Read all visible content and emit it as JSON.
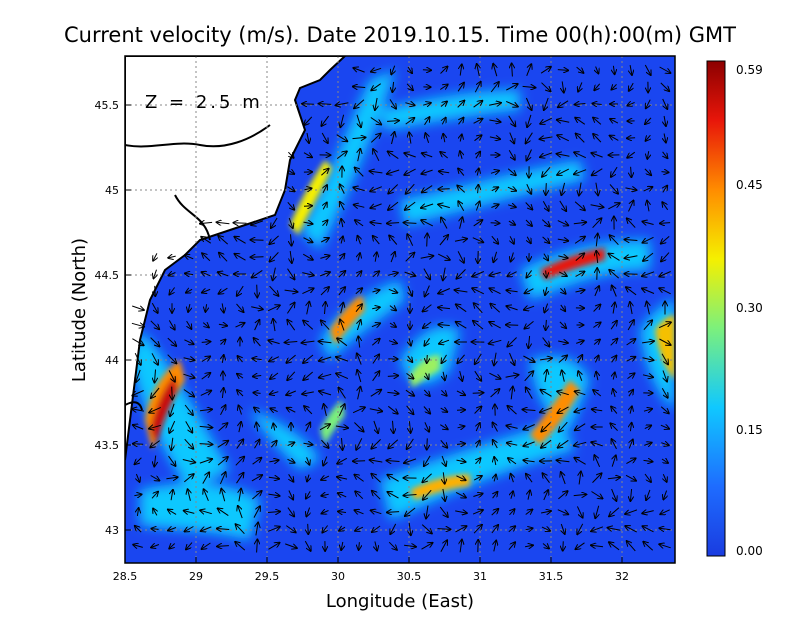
{
  "map": {
    "title": "Current velocity (m/s). Date 2019.10.15. Time 00(h):00(m) GMT",
    "depth_label": "Z = 2.5 m",
    "xlabel": "Longitude (East)",
    "ylabel": "Latitude (North)",
    "x_ticks": [
      "28.5",
      "29",
      "29.5",
      "30",
      "30.5",
      "31",
      "31.5",
      "32"
    ],
    "y_ticks": [
      "45.5",
      "45",
      "44.5",
      "44",
      "43.5",
      "43"
    ],
    "colorbar": {
      "ticks": [
        "0.59",
        "0.45",
        "0.30",
        "0.15",
        "0.00"
      ],
      "colors": [
        "#1a3ce0",
        "#1e6cff",
        "#10c8ff",
        "#7cf07c",
        "#f5f000",
        "#ff8c00",
        "#e8160a",
        "#8c0000"
      ]
    },
    "land_color": "#ffffff",
    "coast_color": "#000000",
    "grid": true
  }
}
